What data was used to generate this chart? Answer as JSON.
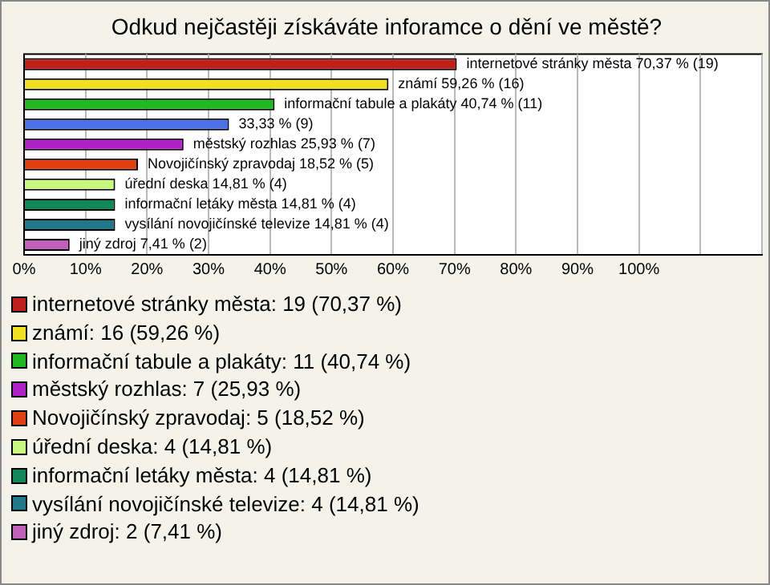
{
  "chart_data": {
    "type": "bar",
    "title": "Odkud nejčastěji získáváte inforamce o dění ve městě?",
    "orientation": "horizontal",
    "stacked": true,
    "legend": "bottom",
    "grid": "x",
    "categories": [
      null,
      null,
      null,
      null,
      null,
      null,
      null,
      null,
      null,
      null
    ],
    "xlim": [
      0,
      120
    ],
    "xticks": [
      {
        "value": 0,
        "label": "0%"
      },
      {
        "value": 10,
        "label": "10%"
      },
      {
        "value": 20,
        "label": "20%"
      },
      {
        "value": 30,
        "label": "30%"
      },
      {
        "value": 40,
        "label": "40%"
      },
      {
        "value": 50,
        "label": "50%"
      },
      {
        "value": 60,
        "label": "60%"
      },
      {
        "value": 70,
        "label": "70%"
      },
      {
        "value": 80,
        "label": "80%"
      },
      {
        "value": 90,
        "label": "90%"
      },
      {
        "value": 100,
        "label": "100%"
      },
      {
        "value": 110,
        "label": null
      },
      {
        "value": 120,
        "label": null
      }
    ],
    "series": [
      {
        "name": "internetové stránky města: 19 (70,37 %)",
        "color": "#c0201a",
        "values": [
          70.37,
          null,
          null,
          null,
          null,
          null,
          null,
          null,
          null,
          null
        ],
        "value_labels": [
          "internetové stránky města 70,37 % (19)",
          null,
          null,
          null,
          null,
          null,
          null,
          null,
          null,
          null
        ]
      },
      {
        "name": "známí: 16 (59,26 %)",
        "color": "#f0e020",
        "values": [
          null,
          59.26,
          null,
          null,
          null,
          null,
          null,
          null,
          null,
          null
        ],
        "value_labels": [
          null,
          "známí 59,26 % (16)",
          null,
          null,
          null,
          null,
          null,
          null,
          null,
          null
        ]
      },
      {
        "name": "informační tabule a plakáty: 11 (40,74 %)",
        "color": "#20b820",
        "values": [
          null,
          null,
          40.74,
          null,
          null,
          null,
          null,
          null,
          null,
          null
        ],
        "value_labels": [
          null,
          null,
          "informační tabule a plakáty 40,74 % (11)",
          null,
          null,
          null,
          null,
          null,
          null,
          null
        ]
      },
      {
        "color": "#4a70e8",
        "values": [
          null,
          null,
          null,
          33.33,
          null,
          null,
          null,
          null,
          null,
          null
        ],
        "value_labels": [
          null,
          null,
          null,
          "33,33 % (9)",
          null,
          null,
          null,
          null,
          null,
          null
        ]
      },
      {
        "name": "městský rozhlas: 7 (25,93 %)",
        "color": "#b020c8",
        "values": [
          null,
          null,
          null,
          null,
          25.93,
          null,
          null,
          null,
          null,
          null
        ],
        "value_labels": [
          null,
          null,
          null,
          null,
          "městský rozhlas 25,93 % (7)",
          null,
          null,
          null,
          null,
          null
        ]
      },
      {
        "name": "Novojičínský zpravodaj: 5 (18,52 %)",
        "color": "#e04010",
        "values": [
          null,
          null,
          null,
          null,
          null,
          18.52,
          null,
          null,
          null,
          null
        ],
        "value_labels": [
          null,
          null,
          null,
          null,
          null,
          "Novojičínský zpravodaj 18,52 % (5)",
          null,
          null,
          null,
          null
        ]
      },
      {
        "name": "úřední deska: 4 (14,81 %)",
        "color": "#c8f880",
        "values": [
          null,
          null,
          null,
          null,
          null,
          null,
          14.81,
          null,
          null,
          null
        ],
        "value_labels": [
          null,
          null,
          null,
          null,
          null,
          null,
          "úřední deska 14,81 % (4)",
          null,
          null,
          null
        ]
      },
      {
        "name": "informační letáky města: 4 (14,81 %)",
        "color": "#10885a",
        "values": [
          null,
          null,
          null,
          null,
          null,
          null,
          null,
          14.81,
          null,
          null
        ],
        "value_labels": [
          null,
          null,
          null,
          null,
          null,
          null,
          null,
          "informační letáky města 14,81 % (4)",
          null,
          null
        ]
      },
      {
        "name": "vysílání novojičínské televize: 4 (14,81 %)",
        "color": "#207888",
        "values": [
          null,
          null,
          null,
          null,
          null,
          null,
          null,
          null,
          14.81,
          null
        ],
        "value_labels": [
          null,
          null,
          null,
          null,
          null,
          null,
          null,
          null,
          "vysílání novojičínské televize 14,81 % (4)",
          null
        ]
      },
      {
        "name": "jiný zdroj: 2 (7,41 %)",
        "color": "#c060b8",
        "values": [
          null,
          null,
          null,
          null,
          null,
          null,
          null,
          null,
          null,
          7.41
        ],
        "value_labels": [
          null,
          null,
          null,
          null,
          null,
          null,
          null,
          null,
          null,
          "jiný zdroj 7,41 % (2)"
        ]
      }
    ]
  }
}
